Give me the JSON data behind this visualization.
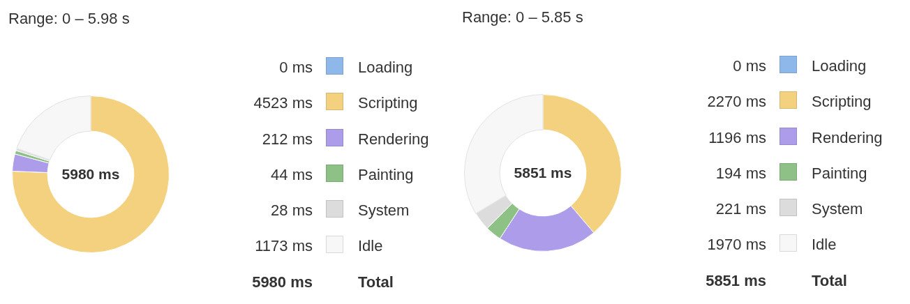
{
  "chart_data": [
    {
      "type": "donut",
      "title": "Range: 0 – 5.98 s",
      "categories": [
        "Loading",
        "Scripting",
        "Rendering",
        "Painting",
        "System",
        "Idle"
      ],
      "values": [
        0,
        4523,
        212,
        44,
        28,
        1173
      ],
      "value_labels": [
        "0 ms",
        "4523 ms",
        "212 ms",
        "44 ms",
        "28 ms",
        "1173 ms"
      ],
      "colors": [
        "#8fb8ea",
        "#f4d17f",
        "#ad9ce9",
        "#8dc185",
        "#dcdcdc",
        "#f7f7f7"
      ],
      "legend": "right",
      "totals": [
        "5980 ms"
      ],
      "annotations": [
        "Total"
      ]
    },
    {
      "type": "donut",
      "title": "Range: 0 – 5.85 s",
      "categories": [
        "Loading",
        "Scripting",
        "Rendering",
        "Painting",
        "System",
        "Idle"
      ],
      "values": [
        0,
        2270,
        1196,
        194,
        221,
        1970
      ],
      "value_labels": [
        "0 ms",
        "2270 ms",
        "1196 ms",
        "194 ms",
        "221 ms",
        "1970 ms"
      ],
      "colors": [
        "#8fb8ea",
        "#f4d17f",
        "#ad9ce9",
        "#8dc185",
        "#dcdcdc",
        "#f7f7f7"
      ],
      "legend": "right",
      "totals": [
        "5851 ms"
      ],
      "annotations": [
        "Total"
      ]
    }
  ]
}
